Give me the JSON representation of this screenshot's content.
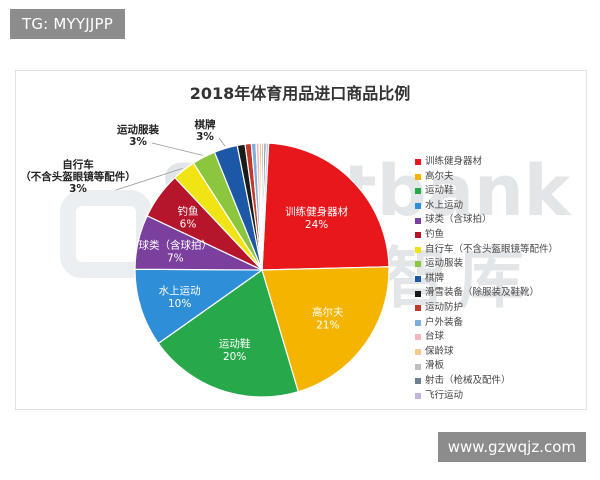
{
  "page": {
    "tag": "TG: MYYJJPP",
    "footer_url": "www.gzwqjz.com"
  },
  "watermark": {
    "brand": "Sportbank",
    "brand_cn": "体银智库"
  },
  "chart_data": {
    "type": "pie",
    "title": "2018年体育用品进口商品比例",
    "legend_position": "right",
    "categories": [
      "训练健身器材",
      "高尔夫",
      "运动鞋",
      "水上运动",
      "球类（含球拍）",
      "钓鱼",
      "自行车（不含头盔眼镜等配件）",
      "运动服装",
      "棋牌",
      "滑雪装备（除服装及鞋靴）",
      "运动防护",
      "户外装备",
      "台球",
      "保龄球",
      "滑板",
      "射击（枪械及配件）",
      "飞行运动"
    ],
    "values": [
      24,
      21,
      20,
      10,
      7,
      6,
      3,
      3,
      3,
      1,
      0.8,
      0.6,
      0.4,
      0.3,
      0.3,
      0.3,
      0.3
    ],
    "colors": [
      "#e8171b",
      "#f5b400",
      "#27a84a",
      "#2e8fd8",
      "#7b3f9e",
      "#b5162c",
      "#f0e415",
      "#8cc63f",
      "#1c58a6",
      "#1a1a1a",
      "#c0392b",
      "#7faedb",
      "#f3b7bd",
      "#f4c98a",
      "#bfbfbf",
      "#6f7f8f",
      "#c4b3d9"
    ],
    "labels": [
      {
        "name": "训练健身器材",
        "pct": "24%"
      },
      {
        "name": "高尔夫",
        "pct": "21%"
      },
      {
        "name": "运动鞋",
        "pct": "20%"
      },
      {
        "name": "水上运动",
        "pct": "10%"
      },
      {
        "name": "球类（含球拍）",
        "pct": "7%"
      },
      {
        "name": "钓鱼",
        "pct": "6%"
      },
      {
        "name": "自行车",
        "sub": "（不含头盔眼镜等配件）",
        "pct": "3%"
      },
      {
        "name": "运动服装",
        "pct": "3%"
      },
      {
        "name": "棋牌",
        "pct": "3%"
      }
    ]
  }
}
